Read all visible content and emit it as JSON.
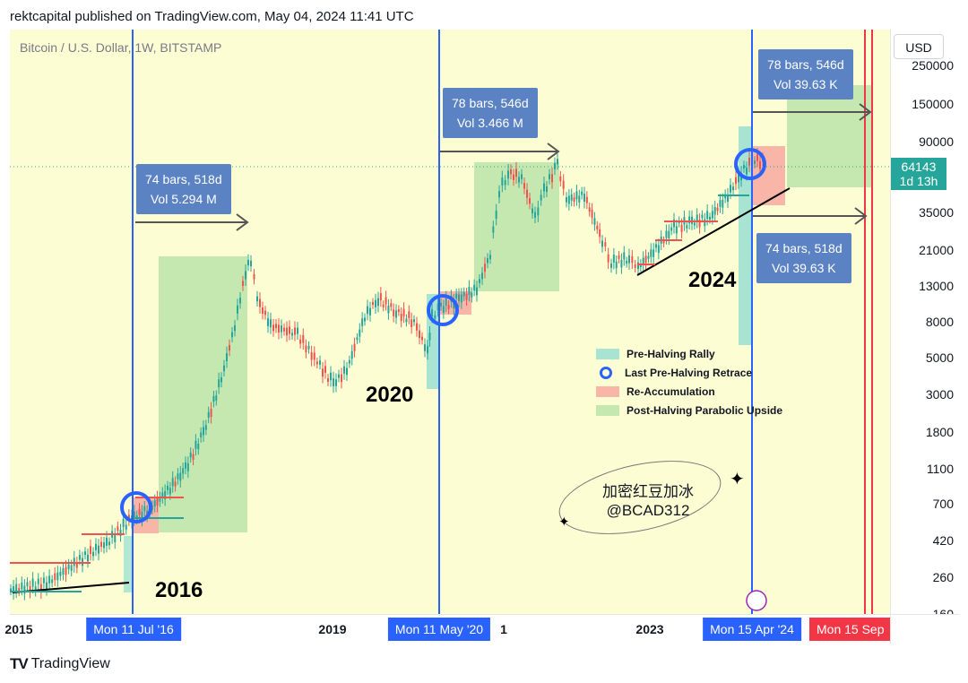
{
  "header": {
    "title": "rektcapital published on TradingView.com, May 04, 2024 11:41 UTC"
  },
  "symbol": "Bitcoin / U.S. Dollar, 1W, BITSTAMP",
  "currency_button": "USD",
  "current_price": {
    "value": "64143",
    "countdown": "1d 13h",
    "color": "#26a69a"
  },
  "price_ticks": [
    "250000",
    "150000",
    "90000",
    "35000",
    "21000",
    "13000",
    "8000",
    "5000",
    "3000",
    "1800",
    "1100",
    "700",
    "420",
    "260",
    "160"
  ],
  "time_labels": [
    "2015",
    "2019",
    "1",
    "2023"
  ],
  "time_markers": [
    {
      "label": "Mon 11 Jul '16",
      "color": "#2962ff"
    },
    {
      "label": "Mon 11 May '20",
      "color": "#2962ff"
    },
    {
      "label": "Mon 15 Apr '24",
      "color": "#2962ff"
    },
    {
      "label": "Mon 15 Sep",
      "color": "#f23645"
    }
  ],
  "measures": [
    {
      "line1": "74 bars, 518d",
      "line2": "Vol 5.294 M"
    },
    {
      "line1": "78 bars, 546d",
      "line2": "Vol 3.466 M"
    },
    {
      "line1": "78 bars, 546d",
      "line2": "Vol 39.63 K"
    },
    {
      "line1": "74 bars, 518d",
      "line2": "Vol 39.63 K"
    }
  ],
  "year_labels": [
    "2016",
    "2020",
    "2024"
  ],
  "legend": [
    {
      "label": "Pre-Halving Rally",
      "color": "#a9e4d3"
    },
    {
      "label": "Last Pre-Halving Retrace",
      "color": "#2962ff"
    },
    {
      "label": "Re-Accumulation",
      "color": "#f8b5a8"
    },
    {
      "label": "Post-Halving Parabolic Upside",
      "color": "#c5e8b0"
    }
  ],
  "watermark": {
    "line1": "加密红豆加冰",
    "line2": "@BCAD312"
  },
  "footer": {
    "logo": "TV",
    "brand": "TradingView"
  },
  "chart_data": {
    "type": "line",
    "scale": "log",
    "title": "Bitcoin / U.S. Dollar, 1W, BITSTAMP",
    "ylim": [
      160,
      250000
    ],
    "x": [
      "2015-01",
      "2015-07",
      "2016-01",
      "2016-07",
      "2016-12",
      "2017-06",
      "2017-12",
      "2018-06",
      "2018-12",
      "2019-06",
      "2020-03",
      "2020-05",
      "2020-12",
      "2021-04",
      "2021-11",
      "2022-06",
      "2022-11",
      "2023-06",
      "2023-12",
      "2024-03",
      "2024-05"
    ],
    "series": [
      {
        "values": [
          260,
          240,
          420,
          650,
          900,
          2500,
          18000,
          6500,
          3500,
          11000,
          5000,
          9000,
          25000,
          60000,
          65000,
          20000,
          16000,
          30000,
          42000,
          70000,
          64143
        ]
      }
    ]
  }
}
